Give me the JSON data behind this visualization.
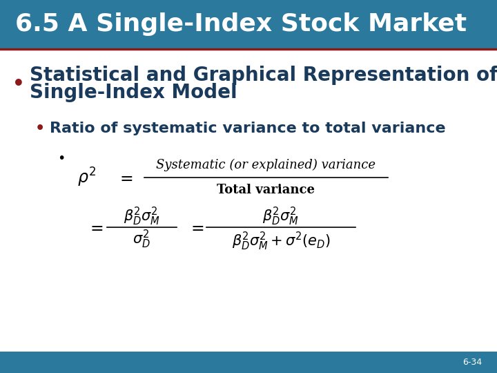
{
  "title": "6.5 A Single-Index Stock Market",
  "title_color": "#ffffff",
  "title_fontsize": 26,
  "bg_color": "#ffffff",
  "header_bar_color": "#2b7a9e",
  "divider_color": "#8b1a1a",
  "bullet1_line1": "Statistical and Graphical Representation of",
  "bullet1_line2": "Single-Index Model",
  "bullet1_color": "#1a3a5c",
  "bullet1_fontsize": 20,
  "bullet2_text": "Ratio of systematic variance to total variance",
  "bullet2_color": "#1a3a5c",
  "bullet2_fontsize": 16,
  "bullet_color": "#8b1a1a",
  "page_number": "6-34",
  "formula1_numerator": "Systematic (or explained) variance",
  "formula1_denominator": "Total variance"
}
